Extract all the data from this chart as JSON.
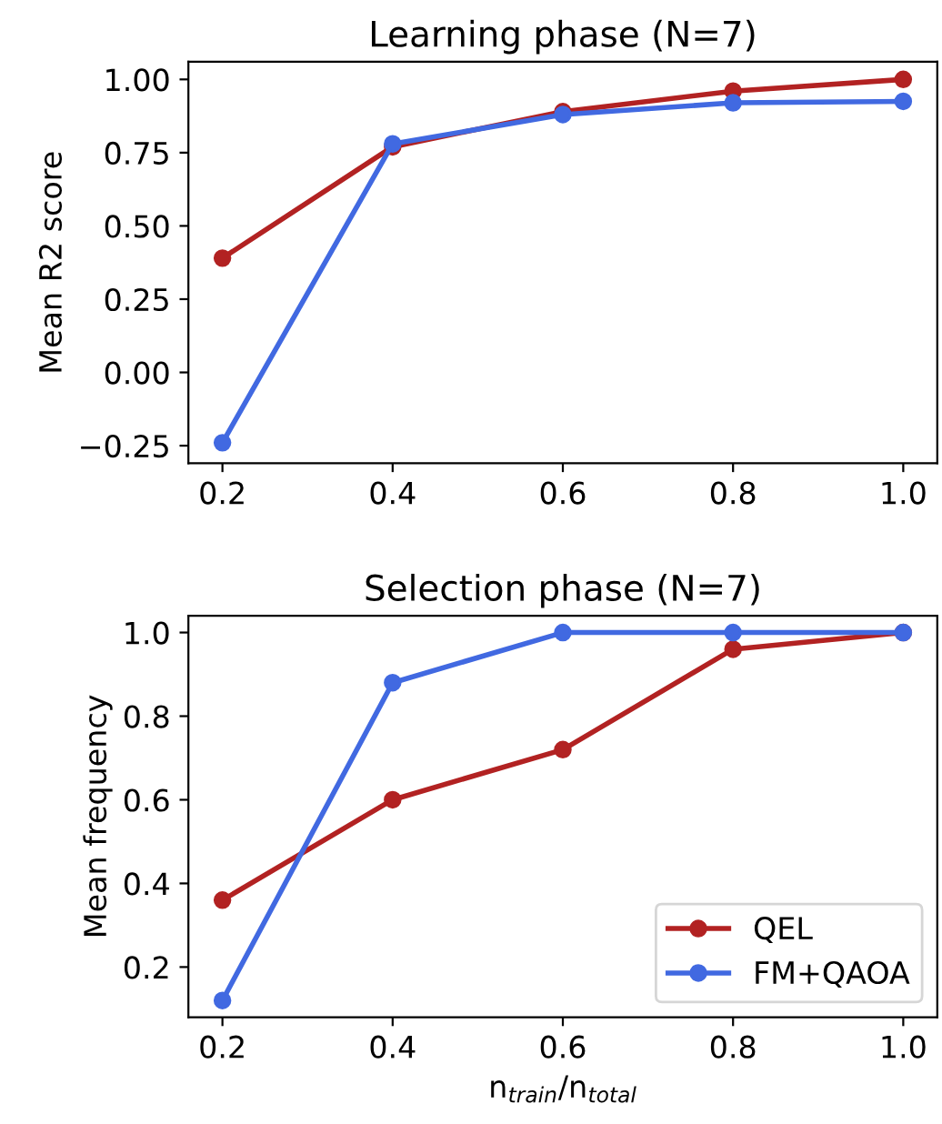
{
  "chart_data": [
    {
      "type": "line",
      "title": "Learning phase (N=7)",
      "ylabel": "Mean R2 score",
      "x": [
        0.2,
        0.4,
        0.6,
        0.8,
        1.0
      ],
      "xlim": [
        0.16,
        1.04
      ],
      "xticks": [
        {
          "value": 0.2,
          "label": "0.2"
        },
        {
          "value": 0.4,
          "label": "0.4"
        },
        {
          "value": 0.6,
          "label": "0.6"
        },
        {
          "value": 0.8,
          "label": "0.8"
        },
        {
          "value": 1.0,
          "label": "1.0"
        }
      ],
      "ylim": [
        -0.31,
        1.06
      ],
      "yticks": [
        {
          "value": -0.25,
          "label": "−0.25"
        },
        {
          "value": 0,
          "label": "0.00"
        },
        {
          "value": 0.25,
          "label": "0.25"
        },
        {
          "value": 0.5,
          "label": "0.50"
        },
        {
          "value": 0.75,
          "label": "0.75"
        },
        {
          "value": 1.0,
          "label": "1.00"
        }
      ],
      "marker": "circle",
      "line_style": "solid",
      "grid": false,
      "legend": false,
      "series": [
        {
          "color": "#b22222",
          "values": [
            0.39,
            0.77,
            0.89,
            0.96,
            1.0
          ]
        },
        {
          "color": "#4169e1",
          "values": [
            -0.24,
            0.78,
            0.88,
            0.92,
            0.925
          ]
        }
      ]
    },
    {
      "type": "line",
      "title": "Selection phase (N=7)",
      "xlabel": "n$_{train}$/n$_{total}$",
      "ylabel": "Mean frequency",
      "x": [
        0.2,
        0.4,
        0.6,
        0.8,
        1.0
      ],
      "xlim": [
        0.16,
        1.04
      ],
      "xticks": [
        {
          "value": 0.2,
          "label": "0.2"
        },
        {
          "value": 0.4,
          "label": "0.4"
        },
        {
          "value": 0.6,
          "label": "0.6"
        },
        {
          "value": 0.8,
          "label": "0.8"
        },
        {
          "value": 1.0,
          "label": "1.0"
        }
      ],
      "ylim": [
        0.08,
        1.04
      ],
      "yticks": [
        {
          "value": 0.2,
          "label": "0.2"
        },
        {
          "value": 0.4,
          "label": "0.4"
        },
        {
          "value": 0.6,
          "label": "0.6"
        },
        {
          "value": 0.8,
          "label": "0.8"
        },
        {
          "value": 1.0,
          "label": "1.0"
        }
      ],
      "marker": "circle",
      "line_style": "solid",
      "grid": false,
      "legend": "bottom right",
      "series": [
        {
          "name": "QEL",
          "color": "#b22222",
          "values": [
            0.36,
            0.6,
            0.72,
            0.96,
            1.0
          ]
        },
        {
          "name": "FM+QAOA",
          "color": "#4169e1",
          "values": [
            0.12,
            0.88,
            1.0,
            1.0,
            1.0
          ]
        }
      ]
    }
  ]
}
